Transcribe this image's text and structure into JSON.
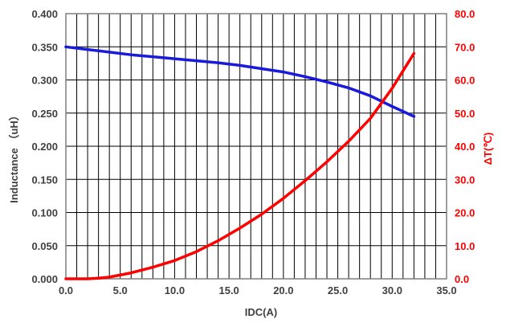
{
  "chart_data": {
    "type": "line",
    "xlabel": "IDC(A)",
    "ylabel": "Inductance （uH）",
    "y2label": "ΔT(℃)",
    "xlim": [
      0,
      35
    ],
    "ylim": [
      0,
      0.4
    ],
    "y2lim": [
      0,
      80
    ],
    "x_ticks": [
      "0.0",
      "5.0",
      "10.0",
      "15.0",
      "20.0",
      "25.0",
      "30.0",
      "35.0"
    ],
    "y_ticks": [
      "0.000",
      "0.050",
      "0.100",
      "0.150",
      "0.200",
      "0.250",
      "0.300",
      "0.350",
      "0.400"
    ],
    "y2_ticks": [
      "0.0",
      "10.0",
      "20.0",
      "30.0",
      "40.0",
      "50.0",
      "60.0",
      "70.0",
      "80.0"
    ],
    "grid": true,
    "series": [
      {
        "axis": "left",
        "color": "#1a1adc",
        "x": [
          0,
          2,
          4,
          6,
          8,
          10,
          12,
          14,
          16,
          18,
          20,
          22,
          24,
          26,
          28,
          30,
          32
        ],
        "values": [
          0.35,
          0.346,
          0.342,
          0.338,
          0.335,
          0.332,
          0.329,
          0.326,
          0.322,
          0.317,
          0.312,
          0.305,
          0.297,
          0.288,
          0.276,
          0.26,
          0.245
        ]
      },
      {
        "axis": "right",
        "color": "#ff0000",
        "x": [
          0,
          2,
          3,
          4,
          6,
          8,
          10,
          12,
          14,
          16,
          18,
          20,
          22,
          24,
          26,
          28,
          30,
          32
        ],
        "values": [
          0,
          0,
          0.2,
          0.5,
          1.8,
          3.5,
          5.5,
          8.2,
          11.5,
          15.3,
          19.5,
          24.3,
          29.6,
          35.3,
          41.5,
          48.4,
          57.5,
          68
        ]
      }
    ]
  }
}
